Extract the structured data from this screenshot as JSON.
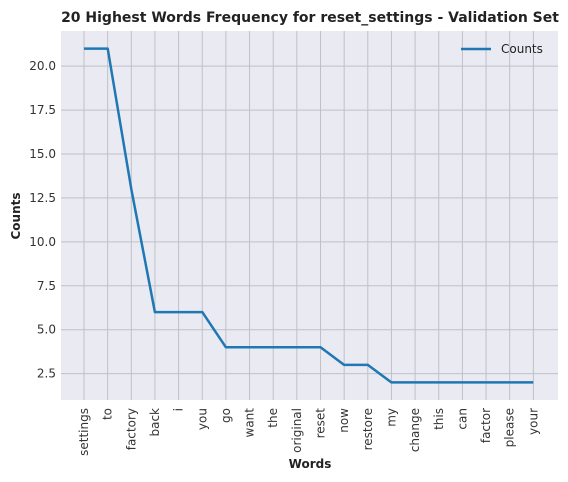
{
  "chart_data": {
    "type": "line",
    "title": "20 Highest Words Frequency for reset_settings - Validation Set",
    "xlabel": "Words",
    "ylabel": "Counts",
    "categories": [
      "settings",
      "to",
      "factory",
      "back",
      "i",
      "you",
      "go",
      "want",
      "the",
      "original",
      "reset",
      "now",
      "restore",
      "my",
      "change",
      "this",
      "can",
      "factor",
      "please",
      "your"
    ],
    "series": [
      {
        "name": "Counts",
        "values": [
          21,
          21,
          13,
          6,
          6,
          6,
          4,
          4,
          4,
          4,
          4,
          3,
          3,
          2,
          2,
          2,
          2,
          2,
          2,
          2
        ],
        "color": "#1f77b4"
      }
    ],
    "ylim": [
      1.0,
      22.0
    ],
    "yticks": [
      2.5,
      5.0,
      7.5,
      10.0,
      12.5,
      15.0,
      17.5,
      20.0
    ],
    "ytick_labels": [
      "2.5",
      "5.0",
      "7.5",
      "10.0",
      "12.5",
      "15.0",
      "17.5",
      "20.0"
    ],
    "grid": true,
    "legend": "top-right",
    "background": "#eaeaf2",
    "grid_color": "#c0c0c8"
  }
}
